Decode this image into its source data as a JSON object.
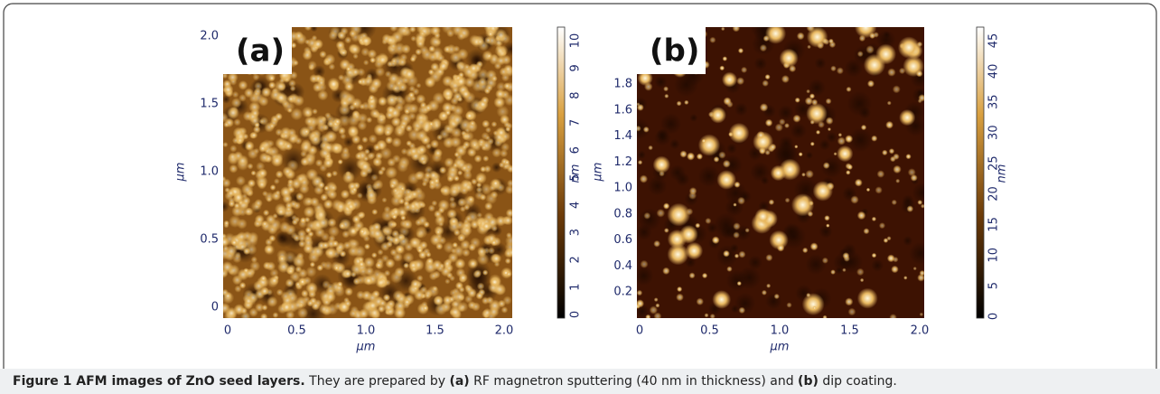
{
  "panels": [
    {
      "label": "(a)",
      "xticks": [
        "0",
        "0.5",
        "1.0",
        "1.5",
        "2.0"
      ],
      "yticks": [
        "0",
        "0.5",
        "1.0",
        "1.5",
        "2.0"
      ],
      "x_label": "μm",
      "y_label": "μm",
      "colorbar_ticks": [
        "0",
        "1",
        "2",
        "3",
        "4",
        "5",
        "6",
        "7",
        "8",
        "9",
        "10"
      ],
      "colorbar_label": "nm"
    },
    {
      "label": "(b)",
      "xticks": [
        "0",
        "0.5",
        "1.0",
        "1.5",
        "2.0"
      ],
      "yticks": [
        "0.2",
        "0.4",
        "0.6",
        "0.8",
        "1.0",
        "1.2",
        "1.4",
        "1.6",
        "1.8"
      ],
      "x_label": "μm",
      "y_label": "μm",
      "colorbar_ticks": [
        "0",
        "5",
        "10",
        "15",
        "20",
        "25",
        "30",
        "35",
        "40",
        "45"
      ],
      "colorbar_label": "nm"
    }
  ],
  "caption": {
    "title": "Figure 1 AFM images of ZnO seed layers.",
    "segments": [
      " They are prepared by ",
      "(a)",
      " RF magnetron sputtering (40 nm in thickness) and ",
      "(b)",
      " dip coating."
    ]
  }
}
